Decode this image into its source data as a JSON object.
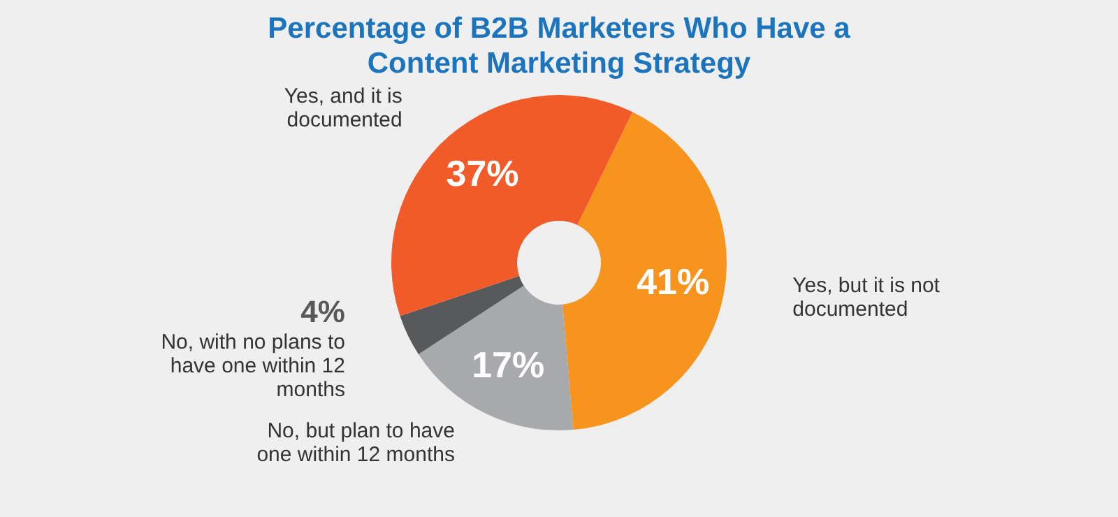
{
  "chart_data": {
    "type": "donut",
    "title": "Percentage of B2B Marketers Who Have a Content Marketing Strategy",
    "categories": [
      "Yes, but it is not documented",
      "No, but plan to have one within 12 months",
      "No, with no plans to have one within 12 months",
      "Yes, and it is documented"
    ],
    "values": [
      41,
      17,
      4,
      37
    ],
    "value_labels": [
      "41%",
      "17%",
      "4%",
      "37%"
    ],
    "colors": [
      "#f7941d",
      "#a7a9ac",
      "#58595b",
      "#f15a29"
    ]
  }
}
